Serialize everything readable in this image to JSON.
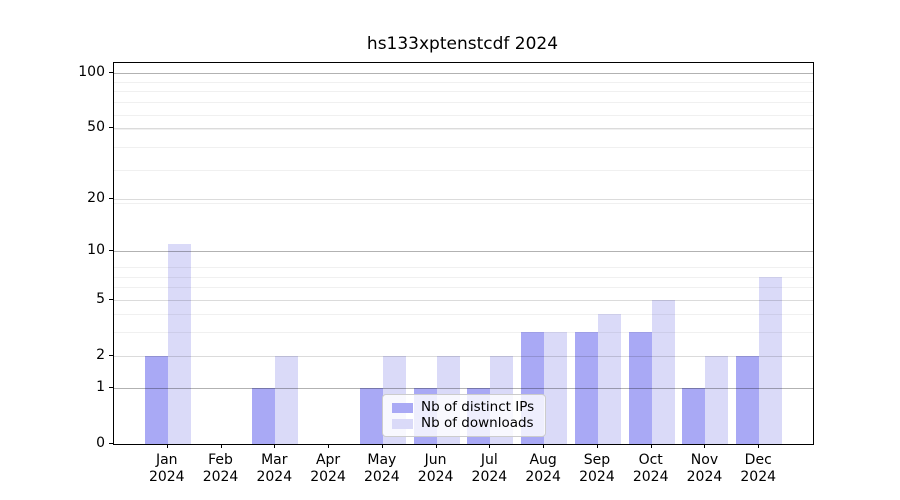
{
  "chart_data": {
    "type": "bar",
    "title": "hs133xptenstcdf 2024",
    "categories": [
      "Jan",
      "Feb",
      "Mar",
      "Apr",
      "May",
      "Jun",
      "Jul",
      "Aug",
      "Sep",
      "Oct",
      "Nov",
      "Dec"
    ],
    "year_label": "2024",
    "series": [
      {
        "name": "Nb of distinct IPs",
        "color": "#a9a9f5",
        "values": [
          2,
          0,
          1,
          0,
          1,
          1,
          1,
          3,
          3,
          3,
          1,
          2
        ]
      },
      {
        "name": "Nb of downloads",
        "color": "#dadaf8",
        "values": [
          11,
          0,
          2,
          0,
          2,
          2,
          2,
          3,
          4,
          5,
          2,
          7
        ]
      }
    ],
    "y_ticks": [
      0,
      1,
      2,
      5,
      10,
      20,
      50,
      100
    ],
    "y_scale": "log10(1+x)",
    "ylim": [
      0,
      113
    ],
    "xlabel": "",
    "ylabel": "",
    "grid": "major+minor",
    "legend_position": "lower center",
    "colors": {
      "spine": "#000000",
      "grid_strong": "#b3b3b3",
      "grid_major": "#dbdbdb",
      "grid_minor": "#efefef",
      "background": "#ffffff",
      "text": "#000000"
    }
  }
}
